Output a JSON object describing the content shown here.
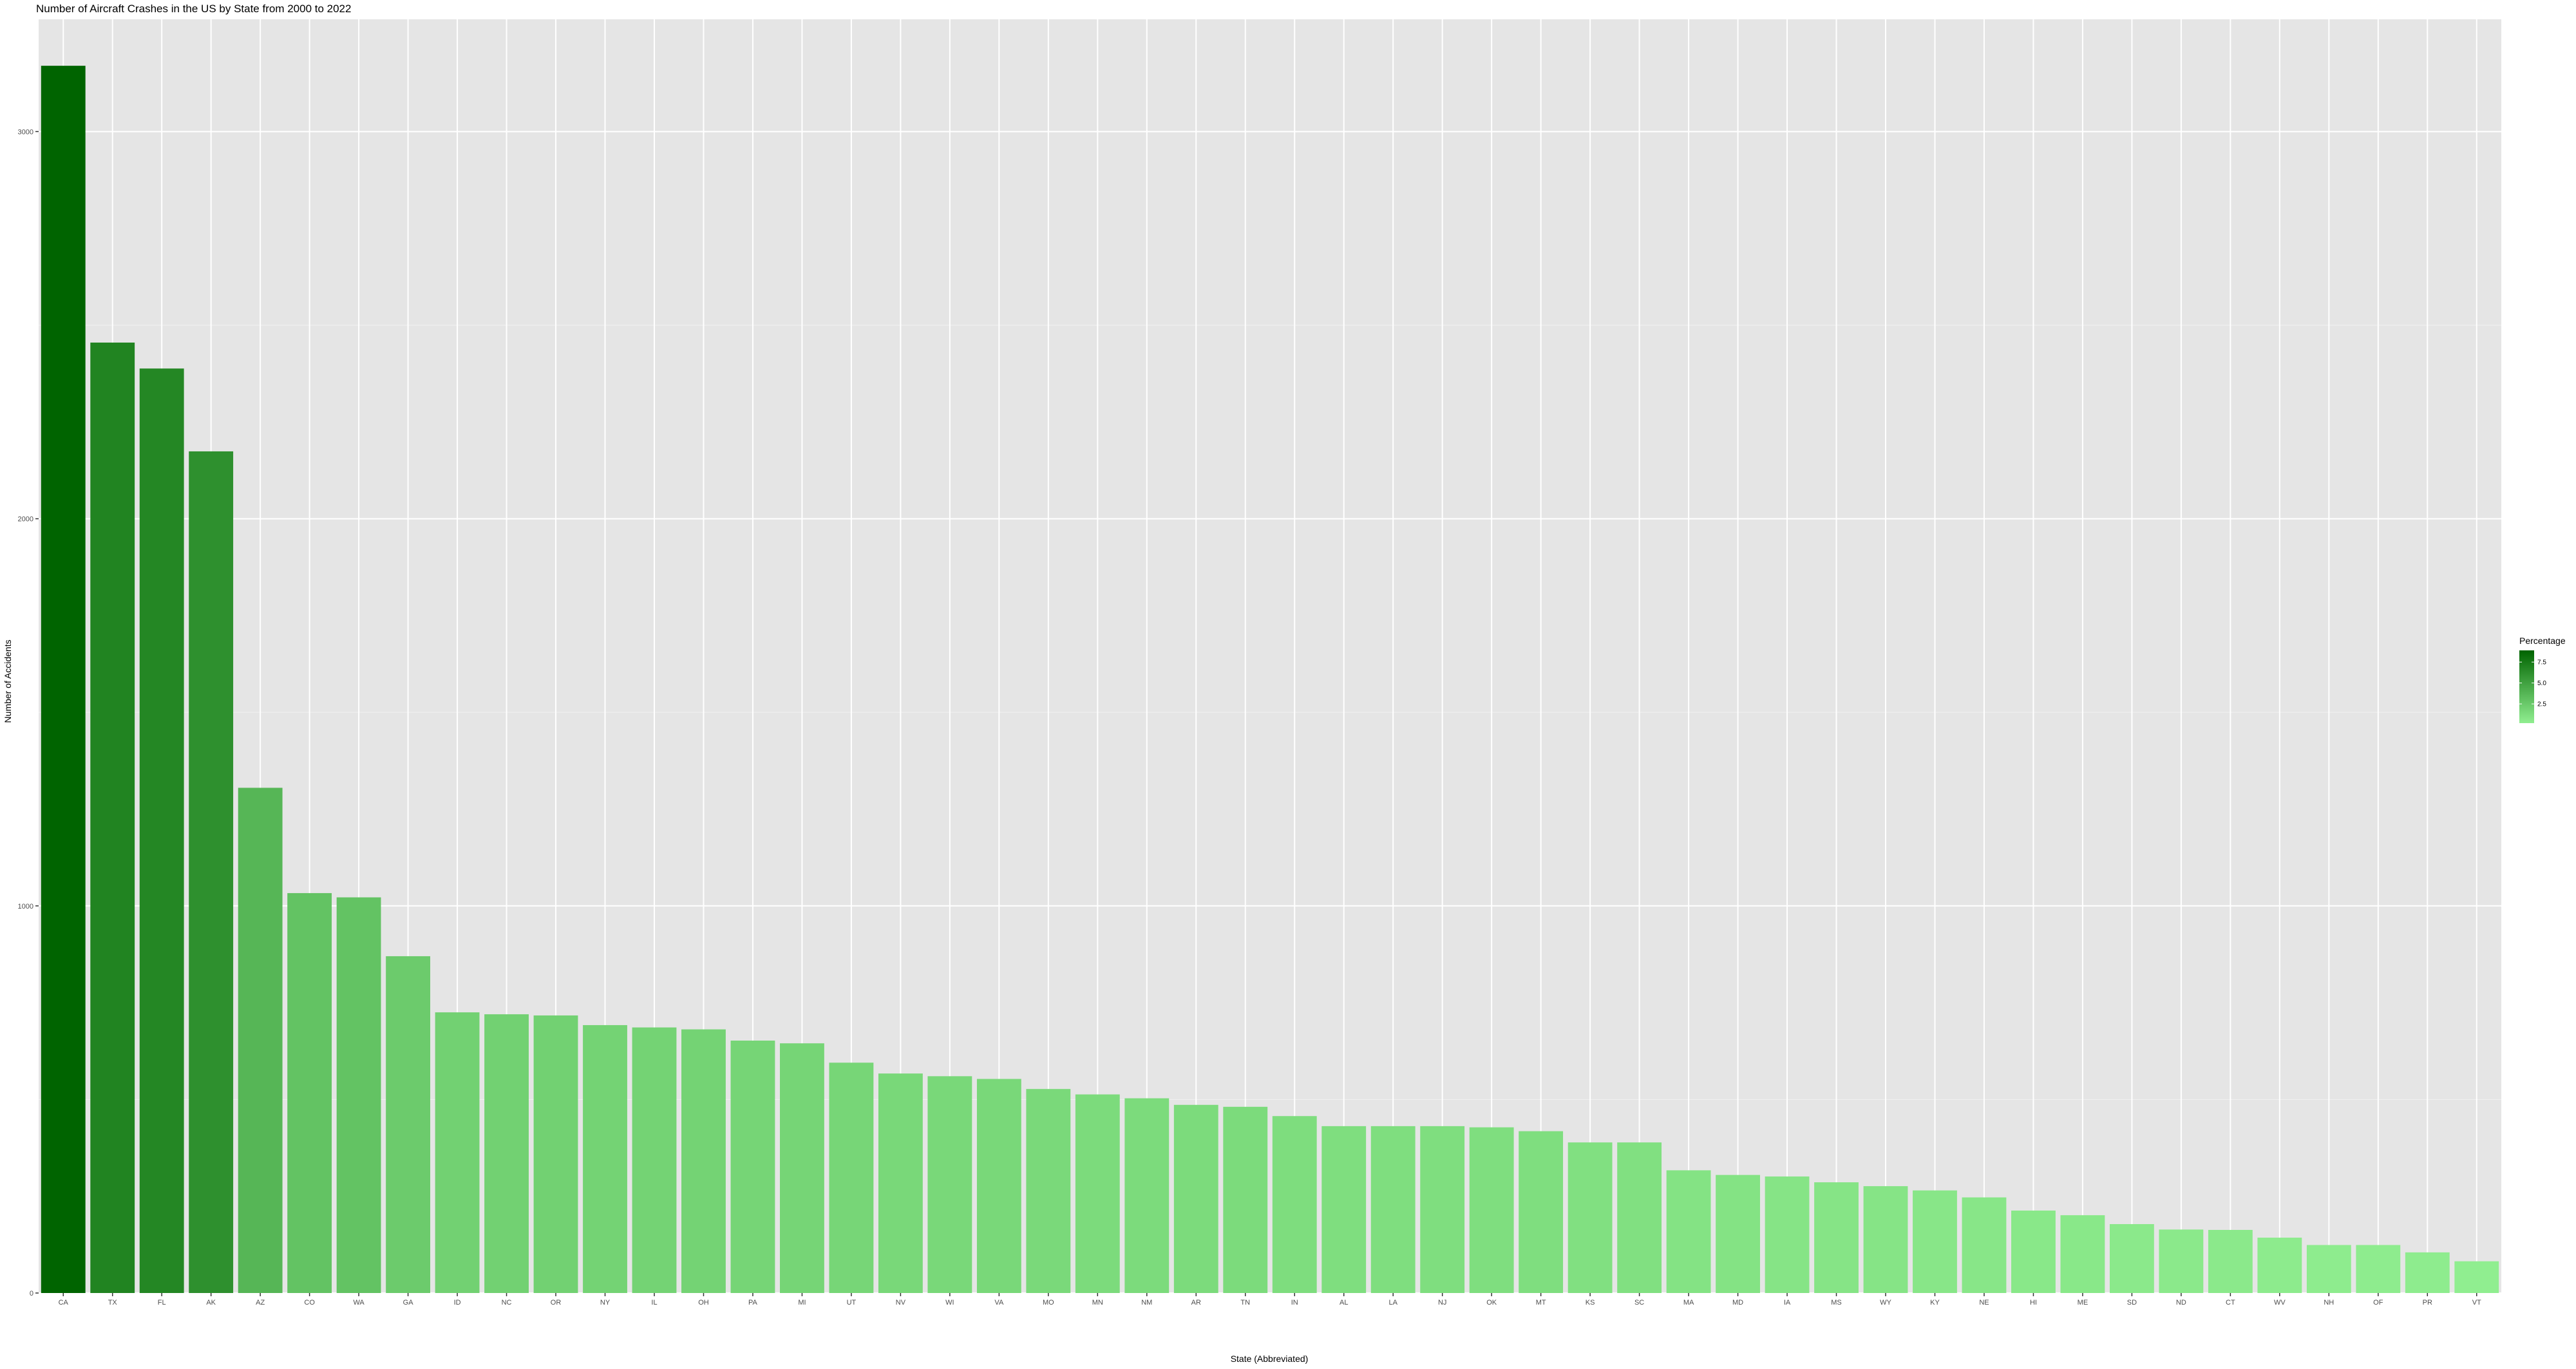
{
  "chart_data": {
    "type": "bar",
    "title": "Number of Aircraft Crashes in the US by State from 2000 to 2022",
    "xlabel": "State (Abbreviated)",
    "ylabel": "Number of Accidents",
    "ylim": [
      0,
      3290
    ],
    "yticks": [
      0,
      1000,
      2000,
      3000
    ],
    "ytick_labels": [
      "0",
      "1000",
      "2000",
      "3000"
    ],
    "grid": true,
    "categories": [
      "CA",
      "TX",
      "FL",
      "AK",
      "AZ",
      "CO",
      "WA",
      "GA",
      "ID",
      "NC",
      "OR",
      "NY",
      "IL",
      "OH",
      "PA",
      "MI",
      "UT",
      "NV",
      "WI",
      "VA",
      "MO",
      "MN",
      "NM",
      "AR",
      "TN",
      "IN",
      "AL",
      "LA",
      "NJ",
      "OK",
      "MT",
      "KS",
      "SC",
      "MA",
      "MD",
      "IA",
      "MS",
      "WY",
      "KY",
      "NE",
      "HI",
      "ME",
      "SD",
      "ND",
      "CT",
      "WV",
      "NH",
      "OF",
      "PR",
      "VT"
    ],
    "values": [
      3170,
      2455,
      2388,
      2174,
      1305,
      1033,
      1022,
      870,
      725,
      720,
      717,
      692,
      686,
      681,
      652,
      645,
      595,
      567,
      560,
      553,
      527,
      513,
      503,
      486,
      481,
      457,
      431,
      431,
      431,
      428,
      418,
      389,
      389,
      317,
      305,
      301,
      286,
      276,
      265,
      247,
      213,
      201,
      178,
      164,
      163,
      143,
      124,
      124,
      105,
      82
    ],
    "percentage": [
      8.9,
      6.9,
      6.7,
      6.1,
      3.7,
      2.9,
      2.9,
      2.4,
      2.0,
      2.0,
      2.0,
      1.9,
      1.9,
      1.9,
      1.8,
      1.8,
      1.7,
      1.6,
      1.6,
      1.6,
      1.5,
      1.4,
      1.4,
      1.4,
      1.4,
      1.3,
      1.2,
      1.2,
      1.2,
      1.2,
      1.2,
      1.1,
      1.1,
      0.9,
      0.9,
      0.8,
      0.8,
      0.8,
      0.7,
      0.7,
      0.6,
      0.6,
      0.5,
      0.5,
      0.5,
      0.4,
      0.3,
      0.3,
      0.3,
      0.2
    ],
    "legend": {
      "title": "Percentage",
      "position": "right",
      "breaks": [
        2.5,
        5.0,
        7.5
      ],
      "labels": [
        "2.5",
        "5.0",
        "7.5"
      ],
      "range": [
        0.2,
        8.9
      ],
      "color_low": "#90ee90",
      "color_high": "#006400"
    },
    "colors": {
      "panel_background": "#e5e5e5",
      "grid_major": "#ffffff",
      "grid_minor": "#f2f2f2",
      "tick_text": "#4d4d4d",
      "tick_mark": "#333333"
    }
  }
}
